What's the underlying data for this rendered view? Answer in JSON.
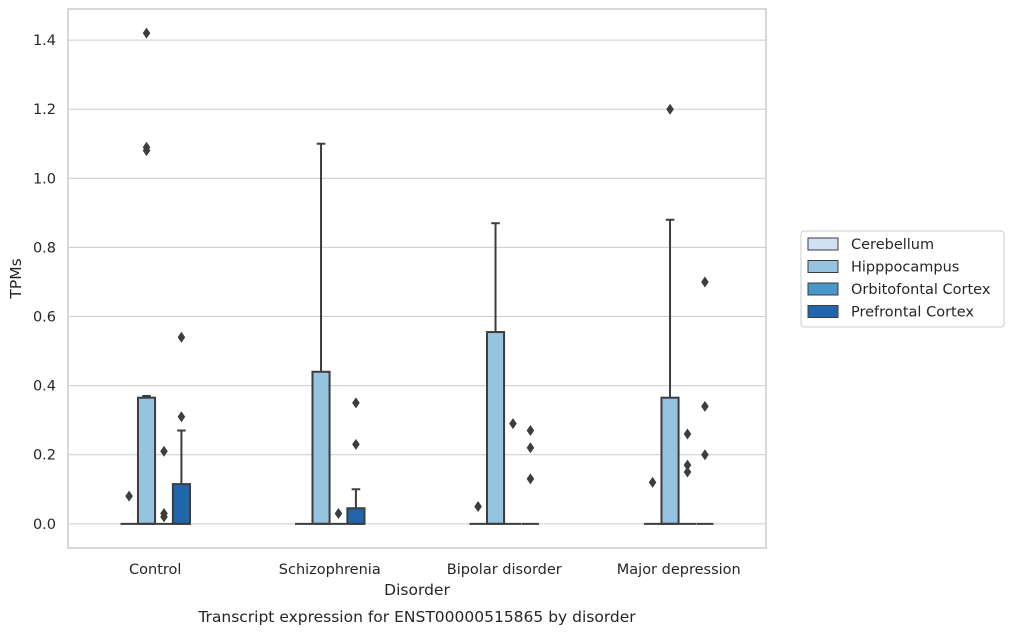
{
  "chart_data": {
    "type": "box",
    "xlabel": "Disorder",
    "ylabel": "TPMs",
    "caption": "Transcript expression for ENST00000515865 by disorder",
    "categories": [
      "Control",
      "Schizophrenia",
      "Bipolar disorder",
      "Major depression"
    ],
    "ylim": [
      -0.07,
      1.49
    ],
    "yticks": [
      0.0,
      0.2,
      0.4,
      0.6,
      0.8,
      1.0,
      1.2,
      1.4
    ],
    "ytick_labels": [
      "0.0",
      "0.2",
      "0.4",
      "0.6",
      "0.8",
      "1.0",
      "1.2",
      "1.4"
    ],
    "grid": "horizontal",
    "legend_position": "outside right",
    "series": [
      {
        "name": "Cerebellum",
        "color": "#d0e1f2",
        "boxes": [
          {
            "q1": 0,
            "median": 0,
            "q3": 0,
            "whisker_low": 0,
            "whisker_high": 0,
            "outliers": [
              0.08
            ]
          },
          {
            "q1": 0,
            "median": 0,
            "q3": 0,
            "whisker_low": 0,
            "whisker_high": 0,
            "outliers": []
          },
          {
            "q1": 0,
            "median": 0,
            "q3": 0,
            "whisker_low": 0,
            "whisker_high": 0,
            "outliers": [
              0.05
            ]
          },
          {
            "q1": 0,
            "median": 0,
            "q3": 0,
            "whisker_low": 0,
            "whisker_high": 0,
            "outliers": [
              0.12
            ]
          }
        ]
      },
      {
        "name": "Hipppocampus",
        "color": "#94c4df",
        "boxes": [
          {
            "q1": 0,
            "median": 0,
            "q3": 0.365,
            "whisker_low": 0,
            "whisker_high": 0.37,
            "outliers": [
              1.42,
              1.09,
              1.08
            ]
          },
          {
            "q1": 0,
            "median": 0,
            "q3": 0.44,
            "whisker_low": 0,
            "whisker_high": 1.1,
            "outliers": []
          },
          {
            "q1": 0,
            "median": 0,
            "q3": 0.555,
            "whisker_low": 0,
            "whisker_high": 0.87,
            "outliers": []
          },
          {
            "q1": 0,
            "median": 0,
            "q3": 0.365,
            "whisker_low": 0,
            "whisker_high": 0.88,
            "outliers": [
              1.2
            ]
          }
        ]
      },
      {
        "name": "Orbitofontal Cortex",
        "color": "#4a98c9",
        "boxes": [
          {
            "q1": 0,
            "median": 0,
            "q3": 0,
            "whisker_low": 0,
            "whisker_high": 0,
            "outliers": [
              0.21,
              0.03,
              0.02
            ]
          },
          {
            "q1": 0,
            "median": 0,
            "q3": 0,
            "whisker_low": 0,
            "whisker_high": 0,
            "outliers": [
              0.03
            ]
          },
          {
            "q1": 0,
            "median": 0,
            "q3": 0,
            "whisker_low": 0,
            "whisker_high": 0,
            "outliers": [
              0.29
            ]
          },
          {
            "q1": 0,
            "median": 0,
            "q3": 0,
            "whisker_low": 0,
            "whisker_high": 0,
            "outliers": [
              0.26,
              0.17,
              0.15
            ]
          }
        ]
      },
      {
        "name": "Prefrontal Cortex",
        "color": "#2166ac",
        "boxes": [
          {
            "q1": 0,
            "median": 0,
            "q3": 0.115,
            "whisker_low": 0,
            "whisker_high": 0.27,
            "outliers": [
              0.54,
              0.31
            ]
          },
          {
            "q1": 0,
            "median": 0,
            "q3": 0.045,
            "whisker_low": 0,
            "whisker_high": 0.1,
            "outliers": [
              0.35,
              0.23
            ]
          },
          {
            "q1": 0,
            "median": 0,
            "q3": 0,
            "whisker_low": 0,
            "whisker_high": 0,
            "outliers": [
              0.27,
              0.22,
              0.13
            ]
          },
          {
            "q1": 0,
            "median": 0,
            "q3": 0,
            "whisker_low": 0,
            "whisker_high": 0,
            "outliers": [
              0.7,
              0.34,
              0.2
            ]
          }
        ]
      }
    ]
  }
}
